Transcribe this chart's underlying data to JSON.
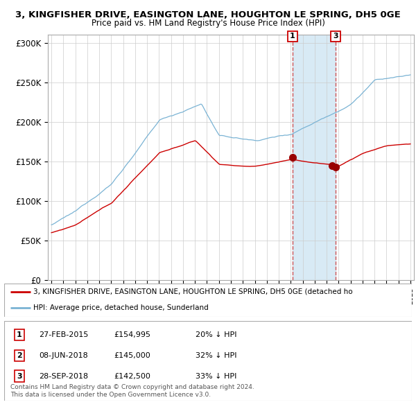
{
  "title1": "3, KINGFISHER DRIVE, EASINGTON LANE, HOUGHTON LE SPRING, DH5 0GE",
  "title2": "Price paid vs. HM Land Registry's House Price Index (HPI)",
  "hpi_color": "#7ab3d4",
  "price_color": "#cc0000",
  "marker_color": "#990000",
  "dashed_line_color": "#cc4444",
  "shade_color": "#d8eaf5",
  "ylim": [
    0,
    310000
  ],
  "yticks": [
    0,
    50000,
    100000,
    150000,
    200000,
    250000,
    300000
  ],
  "ytick_labels": [
    "£0",
    "£50K",
    "£100K",
    "£150K",
    "£200K",
    "£250K",
    "£300K"
  ],
  "sale1_date": 2015.15,
  "sale1_price": 154995,
  "sale1_label": "1",
  "sale2_date": 2018.44,
  "sale2_price": 145000,
  "sale2_label": "2",
  "sale3_date": 2018.75,
  "sale3_price": 142500,
  "sale3_label": "3",
  "legend_line1": "3, KINGFISHER DRIVE, EASINGTON LANE, HOUGHTON LE SPRING, DH5 0GE (detached ho",
  "legend_line2": "HPI: Average price, detached house, Sunderland",
  "table_rows": [
    [
      "1",
      "27-FEB-2015",
      "£154,995",
      "20% ↓ HPI"
    ],
    [
      "2",
      "08-JUN-2018",
      "£145,000",
      "32% ↓ HPI"
    ],
    [
      "3",
      "28-SEP-2018",
      "£142,500",
      "33% ↓ HPI"
    ]
  ],
  "footer": "Contains HM Land Registry data © Crown copyright and database right 2024.\nThis data is licensed under the Open Government Licence v3.0.",
  "background_color": "#ffffff",
  "grid_color": "#cccccc"
}
